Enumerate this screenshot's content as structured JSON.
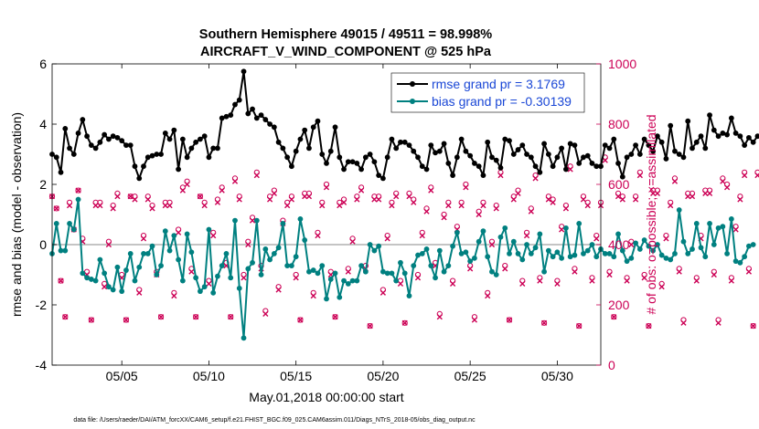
{
  "chart_data": {
    "type": "line",
    "title": "Southern Hemisphere 49015 / 49511 = 98.998%",
    "subtitle": "AIRCRAFT_V_WIND_COMPONENT @ 525 hPa",
    "xlabel": "May.01,2018 00:00:00 start",
    "ylabel_left": "rmse and bias (model - observation)",
    "ylabel_right": "# of obs: o=possible; ×=assimilated",
    "xlim": [
      1,
      32.5
    ],
    "ylim_left": [
      -4,
      6
    ],
    "ylim_right": [
      0,
      1000
    ],
    "x_ticks": [
      5,
      10,
      15,
      20,
      25,
      30
    ],
    "x_tick_labels": [
      "05/05",
      "05/10",
      "05/15",
      "05/20",
      "05/25",
      "05/30"
    ],
    "y_ticks_left": [
      -4,
      -2,
      0,
      2,
      4,
      6
    ],
    "y_ticks_right": [
      0,
      200,
      400,
      600,
      800,
      1000
    ],
    "footer": "data file: /Users/raeder/DAI/ATM_forcXX/CAM6_setup/f.e21.FHIST_BGC.f09_025.CAM6assim.011/Diags_NTrS_2018-05/obs_diag_output.nc",
    "legend_position": "top-right",
    "colors": {
      "rmse": "#000000",
      "bias": "#008080",
      "obs": "#cc0055",
      "zero": "#b0b0b0",
      "legend_text": "#1a47d6"
    },
    "series": [
      {
        "name": "rmse grand pr = 3.1769",
        "start": 1.0,
        "step": 0.25,
        "values": [
          3.0,
          2.9,
          2.4,
          3.85,
          3.2,
          3.0,
          3.7,
          4.15,
          3.6,
          3.3,
          3.2,
          3.4,
          3.65,
          3.5,
          3.6,
          3.55,
          3.45,
          3.3,
          3.3,
          2.6,
          2.2,
          2.6,
          2.9,
          2.95,
          3.0,
          3.0,
          3.7,
          3.5,
          3.8,
          2.5,
          3.5,
          2.9,
          3.2,
          3.4,
          3.5,
          3.6,
          2.9,
          3.2,
          3.2,
          4.2,
          4.25,
          4.3,
          4.65,
          4.8,
          5.75,
          4.35,
          4.5,
          4.2,
          4.3,
          4.15,
          4.0,
          3.9,
          3.4,
          3.2,
          2.9,
          2.6,
          3.1,
          3.5,
          3.8,
          3.2,
          3.9,
          4.1,
          3.0,
          2.7,
          3.1,
          3.9,
          2.9,
          2.5,
          2.75,
          2.75,
          2.7,
          2.5,
          2.9,
          3.0,
          2.75,
          2.3,
          2.2,
          2.9,
          3.5,
          3.2,
          3.4,
          3.4,
          3.3,
          3.1,
          2.9,
          2.6,
          2.5,
          3.3,
          3.05,
          3.1,
          3.35,
          2.7,
          2.3,
          2.9,
          3.5,
          3.1,
          2.95,
          2.7,
          2.6,
          2.3,
          3.4,
          2.9,
          2.8,
          2.55,
          3.5,
          3.45,
          3.0,
          3.15,
          3.3,
          3.0,
          2.9,
          2.6,
          2.4,
          3.35,
          3.0,
          2.6,
          2.9,
          3.2,
          2.5,
          3.35,
          3.3,
          2.7,
          2.9,
          2.95,
          2.7,
          2.6,
          2.6,
          3.3,
          3.2,
          3.5,
          2.7,
          2.25,
          2.9,
          3.0,
          3.3,
          3.0,
          3.5,
          3.3,
          3.1,
          3.6,
          3.4,
          2.85,
          3.95,
          3.1,
          3.0,
          2.9,
          4.1,
          3.2,
          3.4,
          3.6,
          3.2,
          4.3,
          3.8,
          3.6,
          3.7,
          3.65,
          4.2,
          3.7,
          3.6,
          3.3,
          3.55,
          3.4,
          3.6
        ]
      },
      {
        "name": "bias grand pr = -0.30139",
        "start": 1.0,
        "step": 0.25,
        "values": [
          -0.3,
          0.7,
          -0.2,
          -0.2,
          0.7,
          0.5,
          1.5,
          -0.95,
          -1.1,
          -1.15,
          -1.2,
          -0.5,
          -0.95,
          -1.4,
          -1.5,
          -0.75,
          -1.55,
          -0.85,
          -0.3,
          -1.2,
          -0.75,
          -0.3,
          -0.3,
          -0.05,
          -1.0,
          -0.7,
          0.45,
          -0.2,
          0.3,
          -0.5,
          -1.2,
          0.35,
          -0.25,
          -1.1,
          -1.55,
          -1.4,
          0.5,
          -1.6,
          -1.05,
          -0.7,
          -0.3,
          -1.1,
          0.8,
          -1.45,
          -3.1,
          -0.8,
          -0.6,
          0.8,
          -1.0,
          -0.15,
          -0.5,
          -0.3,
          -0.1,
          0.7,
          -0.7,
          -0.7,
          -0.4,
          0.85,
          0.15,
          -0.9,
          -0.85,
          -0.95,
          -0.7,
          -1.8,
          -1.15,
          -0.95,
          -1.75,
          -1.2,
          -1.3,
          -1.2,
          -1.2,
          -0.7,
          -0.9,
          0.0,
          -0.2,
          -0.05,
          -0.9,
          -0.95,
          -0.95,
          -1.2,
          -0.6,
          -0.95,
          -1.7,
          -0.7,
          -0.35,
          -0.3,
          -0.15,
          -0.7,
          -1.1,
          -0.2,
          -0.9,
          -0.7,
          -0.05,
          0.4,
          -0.3,
          -0.25,
          -0.55,
          -0.45,
          0.1,
          0.45,
          -0.4,
          -0.9,
          -1.0,
          0.25,
          0.55,
          -0.3,
          0.1,
          -0.3,
          -0.5,
          0.0,
          -0.3,
          -0.1,
          0.35,
          -0.9,
          -0.2,
          -0.4,
          -0.25,
          -0.45,
          0.55,
          -0.4,
          -0.35,
          0.7,
          -0.3,
          -0.2,
          0.0,
          -0.4,
          -0.15,
          -0.3,
          -0.3,
          -0.4,
          0.35,
          -0.2,
          -0.55,
          -0.45,
          0.05,
          -0.15,
          0.15,
          -0.05,
          -0.2,
          0.0,
          -0.35,
          -0.45,
          -0.5,
          -0.3,
          1.15,
          0.1,
          -0.3,
          -0.15,
          0.7,
          -0.1,
          -0.4,
          0.7,
          0.0,
          0.55,
          0.6,
          -0.3,
          0.85,
          -0.55,
          -0.6,
          -0.4,
          -0.05,
          0.0
        ]
      },
      {
        "name": "obs possible",
        "marker": "o",
        "start": 1.0,
        "step": 0.25,
        "values": [
          560,
          520,
          280,
          160,
          540,
          450,
          580,
          420,
          310,
          150,
          540,
          540,
          270,
          410,
          530,
          570,
          300,
          150,
          560,
          560,
          250,
          430,
          560,
          530,
          310,
          160,
          540,
          540,
          240,
          450,
          590,
          610,
          320,
          160,
          560,
          540,
          280,
          440,
          550,
          590,
          340,
          160,
          620,
          560,
          300,
          410,
          490,
          640,
          330,
          180,
          560,
          580,
          260,
          480,
          540,
          560,
          300,
          150,
          570,
          570,
          240,
          440,
          540,
          600,
          310,
          160,
          540,
          550,
          320,
          420,
          560,
          590,
          330,
          130,
          560,
          560,
          250,
          430,
          540,
          570,
          280,
          140,
          570,
          550,
          300,
          440,
          520,
          590,
          340,
          170,
          500,
          540,
          280,
          460,
          540,
          600,
          330,
          160,
          510,
          540,
          240,
          410,
          530,
          640,
          330,
          150,
          560,
          580,
          280,
          440,
          520,
          630,
          290,
          140,
          560,
          550,
          280,
          460,
          530,
          660,
          320,
          130,
          560,
          540,
          290,
          430,
          540,
          690,
          310,
          160,
          570,
          560,
          290,
          410,
          560,
          640,
          300,
          130,
          580,
          580,
          270,
          430,
          540,
          620,
          320,
          150,
          570,
          570,
          290,
          430,
          580,
          580,
          310,
          150,
          620,
          600,
          290,
          460,
          560,
          640,
          320,
          130,
          640,
          650,
          300,
          400,
          500
        ]
      },
      {
        "name": "obs assimilated",
        "marker": "x",
        "start": 1.0,
        "step": 0.25,
        "values": [
          560,
          520,
          280,
          160,
          530,
          450,
          580,
          410,
          300,
          150,
          530,
          530,
          260,
          400,
          520,
          560,
          290,
          150,
          560,
          550,
          240,
          420,
          550,
          520,
          300,
          160,
          530,
          530,
          230,
          440,
          580,
          600,
          310,
          160,
          560,
          530,
          270,
          430,
          540,
          580,
          330,
          160,
          610,
          550,
          290,
          400,
          480,
          630,
          320,
          170,
          550,
          570,
          250,
          470,
          530,
          550,
          290,
          150,
          560,
          560,
          230,
          430,
          530,
          590,
          300,
          160,
          530,
          540,
          310,
          410,
          550,
          580,
          320,
          130,
          550,
          550,
          240,
          420,
          530,
          560,
          270,
          140,
          560,
          540,
          290,
          430,
          510,
          580,
          330,
          160,
          490,
          530,
          270,
          450,
          530,
          590,
          320,
          150,
          500,
          530,
          230,
          400,
          520,
          630,
          320,
          150,
          550,
          570,
          270,
          430,
          510,
          620,
          280,
          140,
          550,
          540,
          270,
          450,
          520,
          650,
          310,
          130,
          550,
          530,
          280,
          420,
          530,
          680,
          300,
          160,
          560,
          550,
          280,
          400,
          550,
          630,
          290,
          130,
          570,
          570,
          260,
          420,
          530,
          610,
          310,
          140,
          560,
          560,
          280,
          420,
          570,
          570,
          300,
          140,
          610,
          590,
          280,
          450,
          550,
          630,
          310,
          130,
          630,
          640,
          290,
          390,
          490
        ]
      }
    ]
  }
}
